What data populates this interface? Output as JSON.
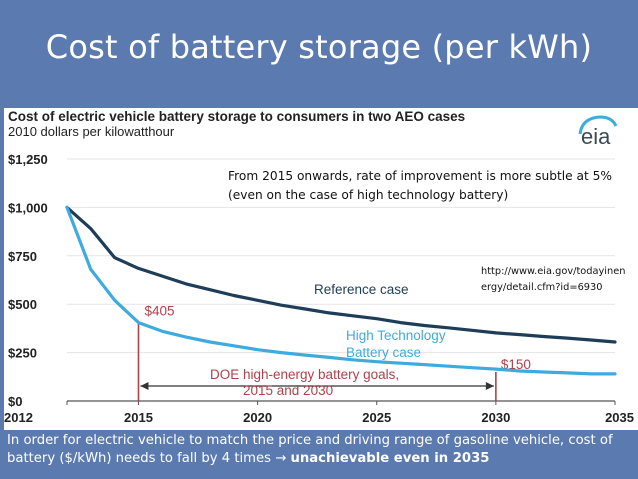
{
  "slide": {
    "title": "Cost of battery storage (per kWh)",
    "bottom_text_part1": "In order for electric vehicle to match the price and driving range of gasoline vehicle, cost of battery ($/kWh) needs to fall by 4 times ",
    "arrow": "→",
    "bottom_text_bold": "unachievable even in 2035"
  },
  "annotations": {
    "note": "From 2015 onwards, rate of improvement is more subtle at 5% (even on the case of high technology battery)",
    "url": "http://www.eia.gov/todayinenergy/detail.cfm?id=6930",
    "logo_text": "eia"
  },
  "chart_data": {
    "type": "line",
    "title": "Cost of electric vehicle battery storage to consumers in two AEO cases",
    "subtitle": "2010 dollars per kilowatthour",
    "x": [
      2012,
      2013,
      2014,
      2015,
      2016,
      2017,
      2018,
      2019,
      2020,
      2021,
      2022,
      2023,
      2024,
      2025,
      2026,
      2027,
      2028,
      2029,
      2030,
      2031,
      2032,
      2033,
      2034,
      2035
    ],
    "series": [
      {
        "name": "Reference case",
        "label": "Reference case",
        "color": "#1e3d58",
        "values": [
          1000,
          890,
          740,
          685,
          645,
          605,
          575,
          545,
          520,
          495,
          475,
          455,
          440,
          425,
          405,
          390,
          378,
          365,
          352,
          343,
          333,
          325,
          315,
          305
        ]
      },
      {
        "name": "High Technology Battery case",
        "label_line1": "High Technology",
        "label_line2": "Battery case",
        "color": "#3eabdf",
        "values": [
          1000,
          680,
          520,
          405,
          360,
          330,
          305,
          285,
          265,
          250,
          237,
          225,
          213,
          203,
          195,
          188,
          180,
          172,
          165,
          155,
          150,
          145,
          140,
          140
        ]
      }
    ],
    "x_ticks": [
      "2012",
      "2015",
      "2020",
      "2025",
      "2030",
      "2035"
    ],
    "y_ticks": [
      "$0",
      "$250",
      "$500",
      "$750",
      "$1,000",
      "$1,250"
    ],
    "xlim": [
      2012,
      2035
    ],
    "ylim": [
      0,
      1250
    ],
    "goals": {
      "label_line1": "DOE high-energy battery goals,",
      "label_line2": "2015 and 2030",
      "points": [
        {
          "year": 2015,
          "value": 405,
          "label": "$405"
        },
        {
          "year": 2030,
          "value": 150,
          "label": "$150"
        }
      ],
      "color": "#b0414a"
    }
  }
}
